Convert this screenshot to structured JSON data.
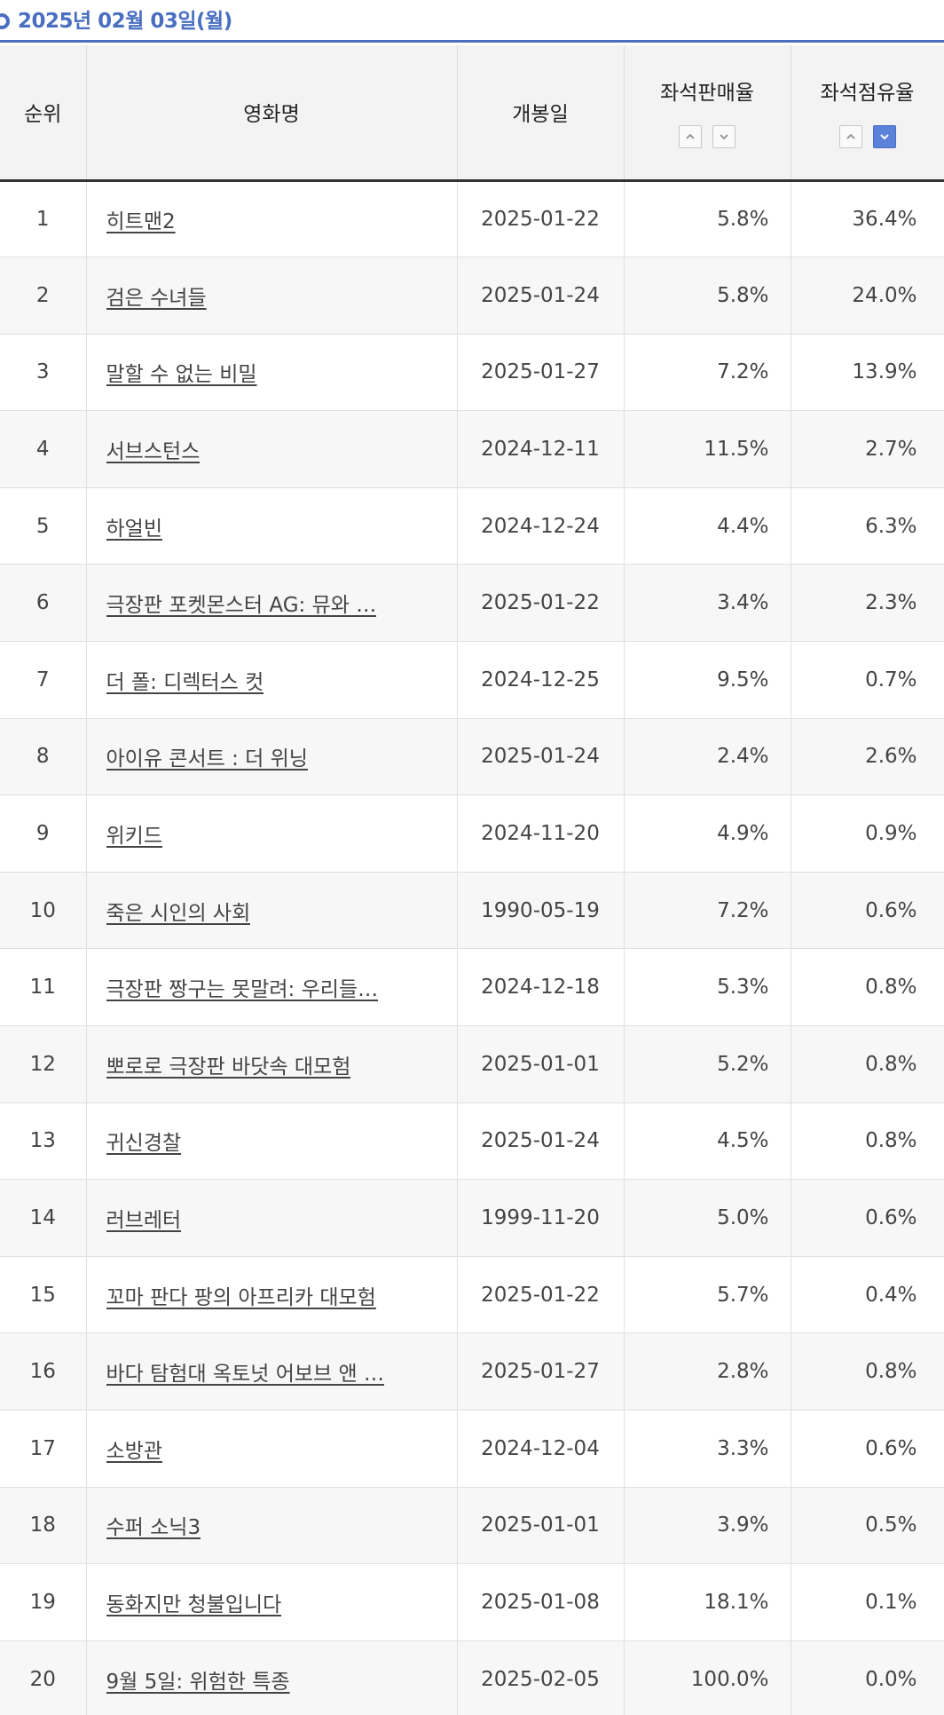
{
  "date_header": "2025년 02월 03일(월)",
  "columns": {
    "rank": "순위",
    "title": "영화명",
    "release_date": "개봉일",
    "seat_sales_rate": "좌석판매율",
    "seat_share": "좌석점유율"
  },
  "sort": {
    "seat_sales_rate": "none",
    "seat_share": "desc"
  },
  "rows": [
    {
      "rank": "1",
      "title": "히트맨2",
      "release": "2025-01-22",
      "sales": "5.8%",
      "share": "36.4%"
    },
    {
      "rank": "2",
      "title": "검은 수녀들",
      "release": "2025-01-24",
      "sales": "5.8%",
      "share": "24.0%"
    },
    {
      "rank": "3",
      "title": "말할 수 없는 비밀",
      "release": "2025-01-27",
      "sales": "7.2%",
      "share": "13.9%"
    },
    {
      "rank": "4",
      "title": "서브스턴스",
      "release": "2024-12-11",
      "sales": "11.5%",
      "share": "2.7%"
    },
    {
      "rank": "5",
      "title": "하얼빈",
      "release": "2024-12-24",
      "sales": "4.4%",
      "share": "6.3%"
    },
    {
      "rank": "6",
      "title": "극장판 포켓몬스터 AG: 뮤와 …",
      "release": "2025-01-22",
      "sales": "3.4%",
      "share": "2.3%"
    },
    {
      "rank": "7",
      "title": "더 폴: 디렉터스 컷",
      "release": "2024-12-25",
      "sales": "9.5%",
      "share": "0.7%"
    },
    {
      "rank": "8",
      "title": "아이유 콘서트 : 더 위닝",
      "release": "2025-01-24",
      "sales": "2.4%",
      "share": "2.6%"
    },
    {
      "rank": "9",
      "title": "위키드",
      "release": "2024-11-20",
      "sales": "4.9%",
      "share": "0.9%"
    },
    {
      "rank": "10",
      "title": "죽은 시인의 사회",
      "release": "1990-05-19",
      "sales": "7.2%",
      "share": "0.6%"
    },
    {
      "rank": "11",
      "title": "극장판 짱구는 못말려: 우리들…",
      "release": "2024-12-18",
      "sales": "5.3%",
      "share": "0.8%"
    },
    {
      "rank": "12",
      "title": "뽀로로 극장판 바닷속 대모험",
      "release": "2025-01-01",
      "sales": "5.2%",
      "share": "0.8%"
    },
    {
      "rank": "13",
      "title": "귀신경찰",
      "release": "2025-01-24",
      "sales": "4.5%",
      "share": "0.8%"
    },
    {
      "rank": "14",
      "title": "러브레터",
      "release": "1999-11-20",
      "sales": "5.0%",
      "share": "0.6%"
    },
    {
      "rank": "15",
      "title": "꼬마 판다 팡의 아프리카 대모험",
      "release": "2025-01-22",
      "sales": "5.7%",
      "share": "0.4%"
    },
    {
      "rank": "16",
      "title": "바다 탐험대 옥토넛 어보브 앤 …",
      "release": "2025-01-27",
      "sales": "2.8%",
      "share": "0.8%"
    },
    {
      "rank": "17",
      "title": "소방관",
      "release": "2024-12-04",
      "sales": "3.3%",
      "share": "0.6%"
    },
    {
      "rank": "18",
      "title": "수퍼 소닉3",
      "release": "2025-01-01",
      "sales": "3.9%",
      "share": "0.5%"
    },
    {
      "rank": "19",
      "title": "동화지만 청불입니다",
      "release": "2025-01-08",
      "sales": "18.1%",
      "share": "0.1%"
    },
    {
      "rank": "20",
      "title": "9월 5일: 위험한 특종",
      "release": "2025-02-05",
      "sales": "100.0%",
      "share": "0.0%"
    }
  ],
  "colors": {
    "accent": "#4a6fc1",
    "sort_active": "#5b82d8",
    "header_bg": "#f3f3f3",
    "row_alt_bg": "#f7f7f7"
  },
  "icons": {
    "date_bullet": "circle-bullet-icon",
    "sort_up": "chevron-up-icon",
    "sort_down": "chevron-down-icon"
  }
}
